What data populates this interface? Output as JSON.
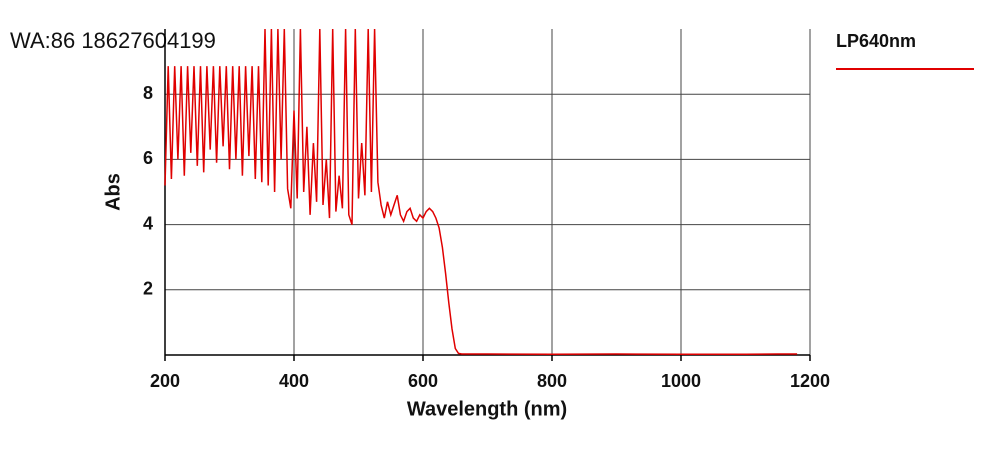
{
  "watermark": "WA:86 18627604199",
  "chart_data": {
    "type": "line",
    "x_label": "Wavelength (nm)",
    "y_label": "Abs",
    "xlim": [
      200,
      1200
    ],
    "ylim": [
      0,
      10
    ],
    "xticks": [
      200,
      400,
      600,
      800,
      1000,
      1200
    ],
    "yticks": [
      2,
      4,
      6,
      8
    ],
    "grid": true,
    "legend": "top-right",
    "x": [
      200,
      205,
      210,
      215,
      220,
      225,
      230,
      235,
      240,
      245,
      250,
      255,
      260,
      265,
      270,
      275,
      280,
      285,
      290,
      295,
      300,
      305,
      310,
      315,
      320,
      325,
      330,
      335,
      340,
      345,
      350,
      355,
      360,
      365,
      370,
      375,
      380,
      385,
      390,
      395,
      400,
      405,
      410,
      415,
      420,
      425,
      430,
      435,
      440,
      445,
      450,
      455,
      460,
      465,
      470,
      475,
      480,
      485,
      490,
      495,
      500,
      505,
      510,
      515,
      520,
      525,
      530,
      535,
      540,
      545,
      550,
      555,
      560,
      565,
      570,
      575,
      580,
      585,
      590,
      595,
      600,
      605,
      610,
      615,
      620,
      625,
      630,
      635,
      640,
      645,
      650,
      655,
      660,
      700,
      800,
      900,
      1000,
      1100,
      1150,
      1180
    ],
    "series": [
      {
        "name": "LP640nm",
        "color": "#e00000",
        "values": [
          5.2,
          8.86,
          5.4,
          8.86,
          6.0,
          8.86,
          5.5,
          8.86,
          6.2,
          8.86,
          5.8,
          8.86,
          5.6,
          8.86,
          6.3,
          8.86,
          5.9,
          8.86,
          6.4,
          8.86,
          5.7,
          8.86,
          6.0,
          8.86,
          5.5,
          8.86,
          6.1,
          8.86,
          5.4,
          8.86,
          5.3,
          10,
          5.2,
          10,
          5.0,
          10,
          6.0,
          10,
          5.1,
          4.5,
          7.5,
          4.8,
          10,
          5.0,
          7.0,
          4.3,
          6.5,
          4.7,
          10,
          4.6,
          6.0,
          4.2,
          10,
          4.4,
          5.5,
          4.5,
          10,
          4.3,
          4.0,
          10,
          4.8,
          6.5,
          4.9,
          10,
          5.0,
          10,
          5.3,
          4.6,
          4.2,
          4.7,
          4.3,
          4.6,
          4.9,
          4.3,
          4.1,
          4.4,
          4.5,
          4.2,
          4.1,
          4.3,
          4.2,
          4.4,
          4.5,
          4.4,
          4.2,
          3.9,
          3.3,
          2.5,
          1.6,
          0.8,
          0.2,
          0.05,
          0.03,
          0.03,
          0.02,
          0.03,
          0.02,
          0.02,
          0.03,
          0.03
        ]
      }
    ]
  }
}
